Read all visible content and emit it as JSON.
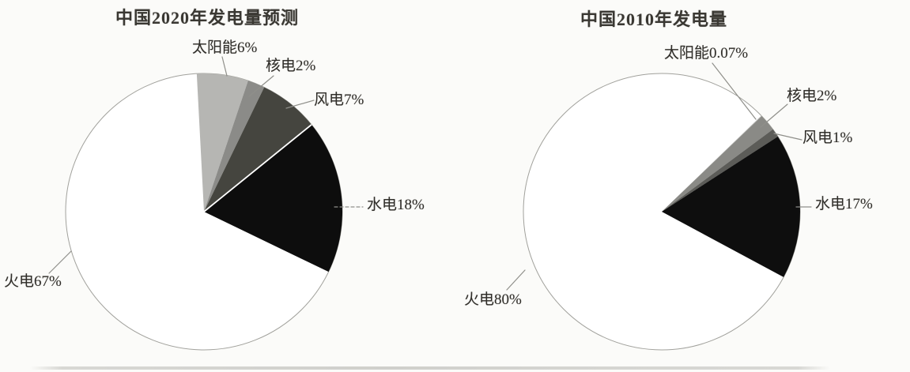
{
  "page": {
    "background_color": "#fbfbf9",
    "description": "Scanned figure with two pie charts comparing China's electricity generation mix"
  },
  "colors": {
    "outline": "#a1a19c",
    "leader_line": "#8f8f8a",
    "text": "#2f2d29",
    "scan_rule": "#c9c9c5",
    "pie_background": "#ffffff"
  },
  "chart_data": [
    {
      "type": "pie",
      "title": "中国2020年发电量预测",
      "start_angle_deg": -3,
      "rotation": "clockwise-from-12-oclock",
      "white_separator_after_index": 2,
      "segments": [
        {
          "name": "solar",
          "label": "太阳能6%",
          "value_pct": 6,
          "color": "#b6b6b3"
        },
        {
          "name": "nuclear",
          "label": "核电2%",
          "value_pct": 2,
          "color": "#8b8b88"
        },
        {
          "name": "wind",
          "label": "风电7%",
          "value_pct": 7,
          "color": "#45453f"
        },
        {
          "name": "hydro",
          "label": "水电18%",
          "value_pct": 18,
          "color": "#0d0d0d"
        },
        {
          "name": "thermal",
          "label": "火电67%",
          "value_pct": 67,
          "color": "#ffffff"
        }
      ]
    },
    {
      "type": "pie",
      "title": "中国2010年发电量",
      "start_angle_deg": 46,
      "rotation": "clockwise-from-12-oclock",
      "segments": [
        {
          "name": "solar",
          "label": "太阳能0.07%",
          "value_pct": 0.07,
          "color": "#c2c2bf"
        },
        {
          "name": "nuclear",
          "label": "核电2%",
          "value_pct": 2,
          "color": "#8a8a86"
        },
        {
          "name": "wind",
          "label": "风电1%",
          "value_pct": 1,
          "color": "#5c5c58"
        },
        {
          "name": "hydro",
          "label": "水电17%",
          "value_pct": 17,
          "color": "#0e0e0e"
        },
        {
          "name": "thermal",
          "label": "火电80%",
          "value_pct": 80,
          "color": "#ffffff"
        }
      ]
    }
  ]
}
